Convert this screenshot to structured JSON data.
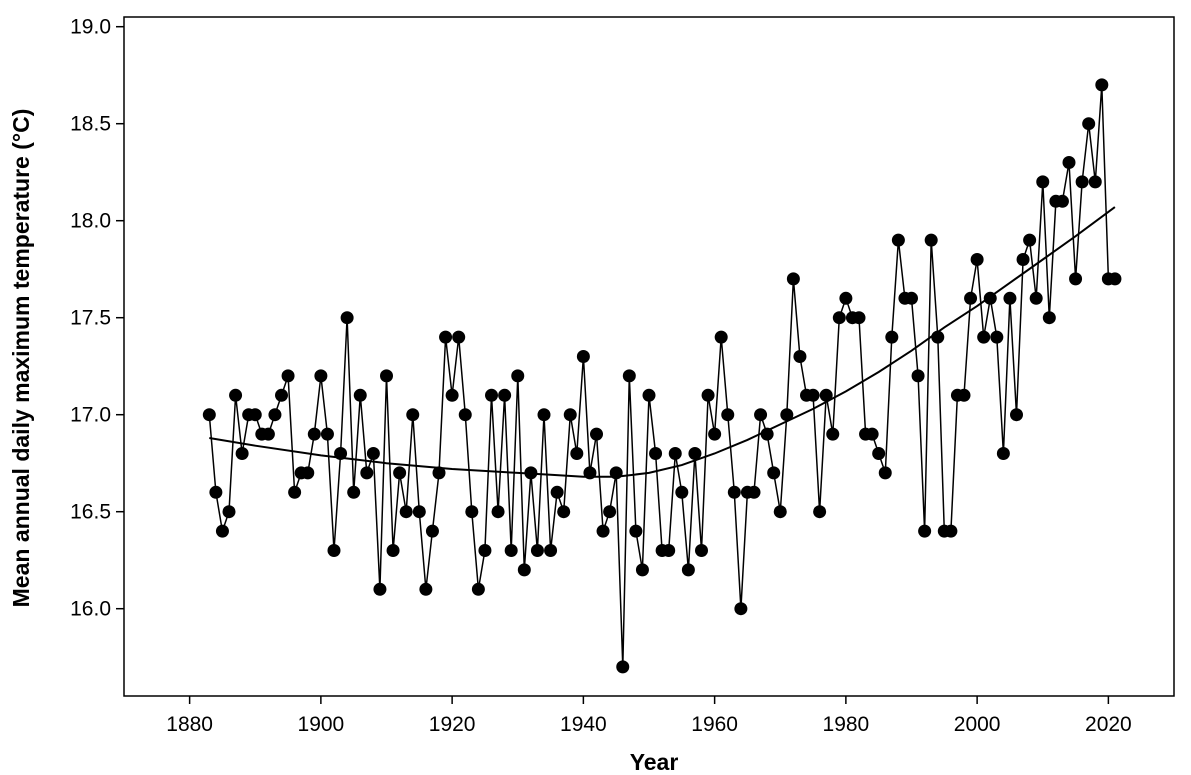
{
  "chart_data": {
    "type": "line",
    "title": "",
    "xlabel": "Year",
    "ylabel": "Mean annual daily maximum temperature (°C)",
    "xlim": [
      1870,
      2030
    ],
    "ylim": [
      15.55,
      19.05
    ],
    "x_ticks": [
      1880,
      1900,
      1920,
      1940,
      1960,
      1980,
      2000,
      2020
    ],
    "y_ticks": [
      16.0,
      16.5,
      17.0,
      17.5,
      18.0,
      18.5,
      19.0
    ],
    "y_tick_labels": [
      "16.0",
      "16.5",
      "17.0",
      "17.5",
      "18.0",
      "18.5",
      "19.0"
    ],
    "grid": false,
    "legend": "none",
    "colors": {
      "line": "#000000",
      "marker": "#000000",
      "axis": "#000000"
    },
    "series": [
      {
        "kind": "observed",
        "x": [
          1883,
          1884,
          1885,
          1886,
          1887,
          1888,
          1889,
          1890,
          1891,
          1892,
          1893,
          1894,
          1895,
          1896,
          1897,
          1898,
          1899,
          1900,
          1901,
          1902,
          1903,
          1904,
          1905,
          1906,
          1907,
          1908,
          1909,
          1910,
          1911,
          1912,
          1913,
          1914,
          1915,
          1916,
          1917,
          1918,
          1919,
          1920,
          1921,
          1922,
          1923,
          1924,
          1925,
          1926,
          1927,
          1928,
          1929,
          1930,
          1931,
          1932,
          1933,
          1934,
          1935,
          1936,
          1937,
          1938,
          1939,
          1940,
          1941,
          1942,
          1943,
          1944,
          1945,
          1946,
          1947,
          1948,
          1949,
          1950,
          1951,
          1952,
          1953,
          1954,
          1955,
          1956,
          1957,
          1958,
          1959,
          1960,
          1961,
          1962,
          1963,
          1964,
          1965,
          1966,
          1967,
          1968,
          1969,
          1970,
          1971,
          1972,
          1973,
          1974,
          1975,
          1976,
          1977,
          1978,
          1979,
          1980,
          1981,
          1982,
          1983,
          1984,
          1985,
          1986,
          1987,
          1988,
          1989,
          1990,
          1991,
          1992,
          1993,
          1994,
          1995,
          1996,
          1997,
          1998,
          1999,
          2000,
          2001,
          2002,
          2003,
          2004,
          2005,
          2006,
          2007,
          2008,
          2009,
          2010,
          2011,
          2012,
          2013,
          2014,
          2015,
          2016,
          2017,
          2018,
          2019,
          2020,
          2021
        ],
        "y": [
          17.0,
          16.6,
          16.4,
          16.5,
          17.1,
          16.8,
          17.0,
          17.0,
          16.9,
          16.9,
          17.0,
          17.1,
          17.2,
          16.6,
          16.7,
          16.7,
          16.9,
          17.2,
          16.9,
          16.3,
          16.8,
          17.5,
          16.6,
          17.1,
          16.7,
          16.8,
          16.1,
          17.2,
          16.3,
          16.7,
          16.5,
          17.0,
          16.5,
          16.1,
          16.4,
          16.7,
          17.4,
          17.1,
          17.4,
          17.0,
          16.5,
          16.1,
          16.3,
          17.1,
          16.5,
          17.1,
          16.3,
          17.2,
          16.2,
          16.7,
          16.3,
          17.0,
          16.3,
          16.6,
          16.5,
          17.0,
          16.8,
          17.3,
          16.7,
          16.9,
          16.4,
          16.5,
          16.7,
          15.7,
          17.2,
          16.4,
          16.2,
          17.1,
          16.8,
          16.3,
          16.3,
          16.8,
          16.6,
          16.2,
          16.8,
          16.3,
          17.1,
          16.9,
          17.4,
          17.0,
          16.6,
          16.0,
          16.6,
          16.6,
          17.0,
          16.9,
          16.7,
          16.5,
          17.0,
          17.7,
          17.3,
          17.1,
          17.1,
          16.5,
          17.1,
          16.9,
          17.5,
          17.6,
          17.5,
          17.5,
          16.9,
          16.9,
          16.8,
          16.7,
          17.4,
          17.9,
          17.6,
          17.6,
          17.2,
          16.4,
          17.9,
          17.4,
          16.4,
          16.4,
          17.1,
          17.1,
          17.6,
          17.8,
          17.4,
          17.6,
          17.4,
          16.8,
          17.6,
          17.0,
          17.8,
          17.9,
          17.6,
          18.2,
          17.5,
          18.1,
          18.1,
          18.3,
          17.7,
          18.2,
          18.5,
          18.2,
          18.7,
          17.7,
          17.7
        ]
      },
      {
        "kind": "trend",
        "x": [
          1883,
          1890,
          1900,
          1910,
          1920,
          1930,
          1935,
          1940,
          1945,
          1950,
          1955,
          1960,
          1965,
          1970,
          1975,
          1980,
          1985,
          1990,
          1995,
          2000,
          2005,
          2010,
          2015,
          2021
        ],
        "y": [
          16.88,
          16.84,
          16.79,
          16.75,
          16.72,
          16.7,
          16.69,
          16.68,
          16.68,
          16.7,
          16.74,
          16.8,
          16.87,
          16.95,
          17.03,
          17.12,
          17.22,
          17.33,
          17.45,
          17.56,
          17.68,
          17.8,
          17.92,
          18.07
        ]
      }
    ]
  }
}
